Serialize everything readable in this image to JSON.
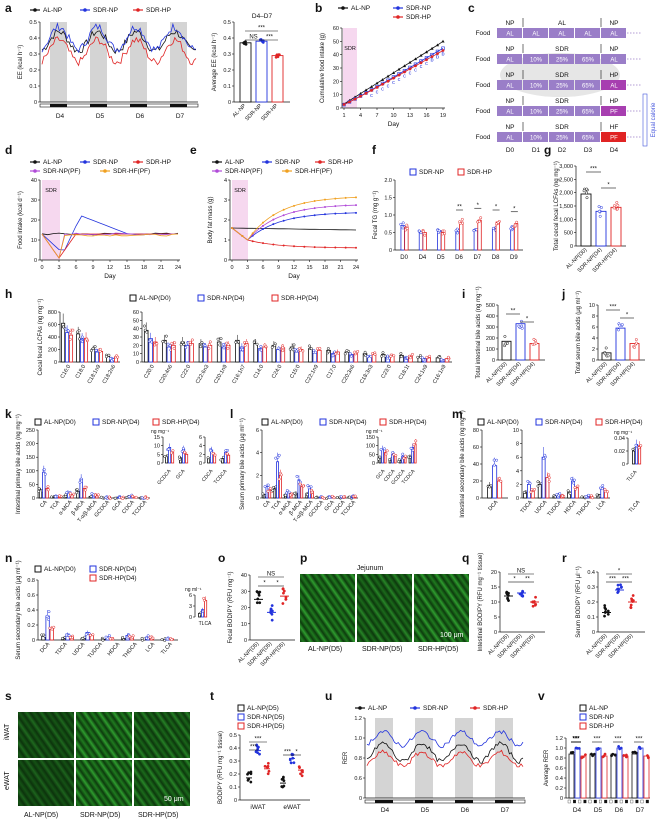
{
  "colors": {
    "al": "#111111",
    "np": "#2233dd",
    "hp": "#e02424",
    "pf_np": "#b04ad8",
    "pf_hf": "#f0a020",
    "sdr": "#f6d8ef",
    "diet": "#9a7ec8",
    "cal": "#4455dd"
  },
  "panels": {
    "a": {
      "label": "a",
      "legend": [
        "AL-NP",
        "SDR-NP",
        "SDR-HP"
      ],
      "ylabel": "EE (kcal h⁻¹)",
      "days": [
        "D4",
        "D5",
        "D6",
        "D7"
      ],
      "yticks": [
        "0",
        "0.1",
        "0.2",
        "0.3",
        "0.4",
        "0.5"
      ],
      "bar": {
        "title": "D4–D7",
        "ylabel": "Average EE (kcal h⁻¹)",
        "yticks": [
          "0",
          "0.1",
          "0.2",
          "0.3",
          "0.4",
          "0.5"
        ],
        "cats": [
          "AL-NP",
          "SDR-NP",
          "SDR-HP"
        ],
        "values": [
          0.37,
          0.38,
          0.29
        ],
        "sig": [
          "NS",
          "***",
          "***"
        ]
      }
    },
    "b": {
      "label": "b",
      "legend": [
        "AL-NP",
        "SDR-NP",
        "SDR-HP"
      ],
      "ylabel": "Cumulative food intake (g)",
      "xlabel": "Day",
      "xticks": [
        "1",
        "4",
        "7",
        "10",
        "13",
        "16",
        "19"
      ],
      "yticks": [
        "0",
        "10",
        "20",
        "30",
        "40",
        "50",
        "60"
      ],
      "sdr": "SDR",
      "chart_data": {
        "type": "line",
        "x": [
          1,
          2,
          3,
          4,
          5,
          6,
          7,
          8,
          9,
          10,
          11,
          12,
          13,
          14,
          15,
          16,
          17,
          18,
          19
        ],
        "series": [
          {
            "name": "AL-NP",
            "values": [
              3,
              5.6,
              8.2,
              10.8,
              13.4,
              16,
              18.6,
              21.2,
              23.8,
              26.4,
              29,
              31.6,
              34.2,
              36.8,
              39.4,
              42,
              44.6,
              47.2,
              50
            ]
          },
          {
            "name": "SDR-NP",
            "values": [
              2.5,
              4.6,
              6.8,
              9,
              11.3,
              13.6,
              16,
              18.4,
              20.8,
              23.2,
              25.6,
              28,
              30.4,
              32.8,
              35.2,
              37.6,
              40,
              42.4,
              44.8
            ]
          },
          {
            "name": "SDR-HP",
            "values": [
              2.6,
              4.6,
              6.7,
              8.8,
              11,
              13.2,
              15.5,
              17.8,
              20.1,
              22.4,
              24.7,
              27,
              29.3,
              31.6,
              33.9,
              36.2,
              38.5,
              40.8,
              43.1
            ]
          }
        ]
      },
      "sig_letters": "c c c c c c c c c c c b b b"
    },
    "c": {
      "label": "c",
      "food": "Food",
      "days": [
        "D0",
        "D1",
        "D2",
        "D3",
        "D4"
      ],
      "equal": "Equal calorie",
      "rows": [
        {
          "top": [
            "NP",
            "AL",
            "NP"
          ],
          "cells": [
            "AL",
            "AL",
            "AL",
            "AL",
            "AL"
          ]
        },
        {
          "top": [
            "NP",
            "SDR",
            "NP"
          ],
          "cells": [
            "AL",
            "10%",
            "25%",
            "65%",
            "AL"
          ]
        },
        {
          "top": [
            "NP",
            "SDR",
            "HP"
          ],
          "cells": [
            "AL",
            "10%",
            "25%",
            "65%",
            "AL"
          ]
        },
        {
          "top": [
            "NP",
            "SDR",
            "HP"
          ],
          "cells": [
            "AL",
            "10%",
            "25%",
            "65%",
            "PF"
          ]
        },
        {
          "top": [
            "NP",
            "SDR",
            "HF"
          ],
          "cells": [
            "AL",
            "10%",
            "25%",
            "65%",
            "PF"
          ]
        }
      ]
    },
    "d": {
      "label": "d",
      "legend": [
        "AL-NP",
        "SDR-NP",
        "SDR-HP",
        "SDR-NP(PF)",
        "SDR-HF(PF)"
      ],
      "ylabel": "Food intake (kcal d⁻¹)",
      "xlabel": "Day",
      "xticks": [
        "0",
        "3",
        "6",
        "9",
        "12",
        "15",
        "18",
        "21",
        "24"
      ],
      "yticks": [
        "0",
        "10",
        "20",
        "30",
        "40"
      ],
      "sdr": "SDR"
    },
    "e": {
      "label": "e",
      "legend": [
        "AL-NP",
        "SDR-NP",
        "SDR-HP",
        "SDR-NP(PF)",
        "SDR-HF(PF)"
      ],
      "ylabel": "Body fat mass (g)",
      "xlabel": "Day",
      "xticks": [
        "0",
        "3",
        "6",
        "9",
        "12",
        "15",
        "18",
        "21",
        "24"
      ],
      "yticks": [
        "0",
        "1",
        "2",
        "3",
        "4"
      ],
      "sdr": "SDR"
    },
    "f": {
      "label": "f",
      "legend": [
        "SDR-NP",
        "SDR-HP"
      ],
      "ylabel": "Fecal TG (mg g⁻¹)",
      "cats": [
        "D0",
        "D4",
        "D5",
        "D6",
        "D7",
        "D8",
        "D9"
      ],
      "yticks": [
        "0",
        "0.5",
        "1.0",
        "1.5",
        "2.0"
      ],
      "np": [
        0.7,
        0.5,
        0.55,
        0.55,
        0.55,
        0.6,
        0.6
      ],
      "hp": [
        0.65,
        0.5,
        0.5,
        0.8,
        0.85,
        0.8,
        0.75
      ],
      "sig": [
        "",
        "",
        "",
        "**",
        "*",
        "*",
        "*"
      ]
    },
    "g": {
      "label": "g",
      "ylabel": "Total cecal fecal LCFAs (ng mg⁻¹)",
      "yticks": [
        "0",
        "500",
        "1,000",
        "1,500",
        "2,000",
        "2,500",
        "3,000"
      ],
      "cats": [
        "AL-NP(D0)",
        "SDR-NP(D4)",
        "SDR-HP(D4)"
      ],
      "values": [
        1950,
        1300,
        1450
      ],
      "sig": [
        "***",
        "*"
      ]
    },
    "h": {
      "label": "h",
      "legend": [
        "AL-NP(D0)",
        "SDR-NP(D4)",
        "SDR-HP(D4)"
      ],
      "ylabel": "Cecal fecal LCFAs (ng mg⁻¹)",
      "left_cats": [
        "C16:0",
        "C18:0",
        "C18:1n9",
        "C18:2n6"
      ],
      "left_yticks": [
        "0",
        "200",
        "400",
        "600",
        "800"
      ],
      "left": [
        [
          620,
          470,
          430
        ],
        [
          450,
          370,
          380
        ],
        [
          210,
          160,
          170
        ],
        [
          90,
          60,
          80
        ]
      ],
      "right_cats": [
        "C20:0",
        "C20:4n6",
        "C22:0",
        "C22:6n3",
        "C20:1n9",
        "C16:1n7",
        "C14:0",
        "C24:0",
        "C15:0",
        "C22:1n9",
        "C17:0",
        "C20:3n6",
        "C18:3n3",
        "C23:0",
        "C18:1t",
        "C24:1n9",
        "C16:1n9"
      ],
      "right_yticks": [
        "0",
        "10",
        "20",
        "30",
        "40",
        "50",
        "60"
      ],
      "right": [
        [
          38,
          28,
          24
        ],
        [
          26,
          18,
          20
        ],
        [
          24,
          20,
          22
        ],
        [
          22,
          18,
          20
        ],
        [
          24,
          18,
          20
        ],
        [
          26,
          18,
          22
        ],
        [
          22,
          16,
          18
        ],
        [
          20,
          15,
          17
        ],
        [
          18,
          12,
          15
        ],
        [
          16,
          12,
          14
        ],
        [
          14,
          10,
          12
        ],
        [
          12,
          9,
          10
        ],
        [
          10,
          7,
          9
        ],
        [
          9,
          6,
          8
        ],
        [
          8,
          6,
          7
        ],
        [
          6,
          4,
          5
        ],
        [
          5,
          3,
          4
        ]
      ]
    },
    "i": {
      "label": "i",
      "ylabel": "Total intestinal bile acids (ng mg⁻¹)",
      "yticks": [
        "0",
        "100",
        "200",
        "300",
        "400",
        "500"
      ],
      "cats": [
        "AL-NP(D0)",
        "SDR-NP(D4)",
        "SDR-HP(D4)"
      ],
      "values": [
        170,
        330,
        150
      ],
      "sig": [
        "**",
        "*"
      ]
    },
    "j": {
      "label": "j",
      "ylabel": "Total serum bile acids (μg ml⁻¹)",
      "yticks": [
        "0",
        "2",
        "4",
        "6",
        "8",
        "10"
      ],
      "cats": [
        "AL-NP(D0)",
        "SDR-NP(D4)",
        "SDR-HP(D4)"
      ],
      "values": [
        1.3,
        5.8,
        3.0
      ],
      "sig": [
        "***",
        "*"
      ]
    },
    "k": {
      "label": "k",
      "legend": [
        "AL-NP(D0)",
        "SDR-NP(D4)",
        "SDR-HP(D4)"
      ],
      "ylabel": "Intestinal primary bile acids (ng mg⁻¹)",
      "cats": [
        "CA",
        "TCA",
        "α-MCA",
        "β-MCA",
        "T-α/β-MCA",
        "GCDCA",
        "GCA",
        "CDCA",
        "TCDCA"
      ],
      "yticks": [
        "0",
        "50",
        "100",
        "150",
        "200",
        "250"
      ],
      "values": [
        [
          30,
          95,
          35
        ],
        [
          3,
          8,
          4
        ],
        [
          8,
          18,
          12
        ],
        [
          25,
          70,
          35
        ],
        [
          6,
          12,
          8
        ],
        [
          0.5,
          1,
          0.6
        ],
        [
          1,
          2,
          1.2
        ],
        [
          3,
          6,
          4
        ],
        [
          1,
          2,
          1.5
        ]
      ],
      "inset_cats": [
        "GCDCA",
        "GCA"
      ],
      "inset_ylabel": "ng mg⁻¹",
      "inset2_cats": [
        "CDCA",
        "TCDCA"
      ]
    },
    "l": {
      "label": "l",
      "legend": [
        "AL-NP(D0)",
        "SDR-NP(D4)",
        "SDR-HP(D4)"
      ],
      "ylabel": "Serum primary bile acids (μg ml⁻¹)",
      "cats": [
        "CA",
        "TCA",
        "α-MCA",
        "β-MCA",
        "T-α/β-MCA",
        "GCDCA",
        "GCA",
        "CDCA",
        "TCDCA"
      ],
      "yticks": [
        "0",
        "2",
        "4",
        "6"
      ],
      "values": [
        [
          0.3,
          1.0,
          0.7
        ],
        [
          0.8,
          3.2,
          2.0
        ],
        [
          0.2,
          0.5,
          0.4
        ],
        [
          0.4,
          1.6,
          1.0
        ],
        [
          0.3,
          0.9,
          0.6
        ],
        [
          0.02,
          0.05,
          0.04
        ],
        [
          0.05,
          0.1,
          0.08
        ],
        [
          0.03,
          0.06,
          0.05
        ],
        [
          0.05,
          0.15,
          0.12
        ]
      ],
      "inset_cats": [
        "GCA",
        "CDCA",
        "GCDCA",
        "TCDCA"
      ],
      "inset_ylabel": "ng ml⁻¹"
    },
    "m": {
      "label": "m",
      "legend": [
        "AL-NP(D0)",
        "SDR-NP(D4)",
        "SDR-HP(D4)"
      ],
      "ylabel": "Intestinal secondary bile acids (ng mg⁻¹)",
      "cats": [
        "DCA",
        "TDCA",
        "UDCA",
        "TUDCA",
        "HDCA",
        "THDCA",
        "LCA",
        "TLCA"
      ],
      "left_yticks": [
        "0",
        "20",
        "40",
        "60",
        "80"
      ],
      "right_yticks": [
        "0",
        "2",
        "4",
        "6",
        "8",
        "10"
      ],
      "values": [
        [
          15,
          38,
          20
        ],
        [
          0.8,
          2.0,
          1.0
        ],
        [
          2,
          6,
          3
        ],
        [
          0.2,
          0.6,
          0.4
        ],
        [
          0.8,
          2.5,
          1.5
        ],
        [
          0.1,
          0.3,
          0.2
        ],
        [
          0.5,
          1.5,
          1.0
        ],
        [
          0.02,
          0.03,
          0.03
        ]
      ],
      "inset_cats": [
        "TLCA"
      ],
      "inset_ylabel": "ng mg⁻¹"
    },
    "n": {
      "label": "n",
      "legend": [
        "AL-NP(D0)",
        "SDR-NP(D4)",
        "SDR-HP(D4)"
      ],
      "ylabel": "Serum secondary bile acids (μg ml⁻¹)",
      "cats": [
        "DCA",
        "TDCA",
        "UDCA",
        "TUDCA",
        "HDCA",
        "THDCA",
        "LCA",
        "TLCA"
      ],
      "yticks": [
        "0",
        "0.2",
        "0.4",
        "0.6",
        "0.8"
      ],
      "values": [
        [
          0.05,
          0.32,
          0.15
        ],
        [
          0.02,
          0.08,
          0.05
        ],
        [
          0.03,
          0.1,
          0.06
        ],
        [
          0.01,
          0.04,
          0.03
        ],
        [
          0.02,
          0.06,
          0.04
        ],
        [
          0.01,
          0.04,
          0.03
        ],
        [
          0.005,
          0.02,
          0.015
        ],
        [
          0.002,
          0.004,
          0.006
        ]
      ],
      "inset_cats": [
        "TLCA"
      ],
      "inset_ylabel": "ng ml⁻¹"
    },
    "o": {
      "label": "o",
      "ylabel": "Fecal BODIPY (RFU mg⁻¹)",
      "yticks": [
        "0",
        "10",
        "20",
        "30",
        "40"
      ],
      "cats": [
        "AL-NP(D5)",
        "SDR-NP(D5)",
        "SDR-HP(D5)"
      ],
      "values": [
        25,
        17,
        27
      ],
      "sig": [
        "NS",
        "*",
        "*"
      ]
    },
    "p": {
      "label": "p",
      "title": "Jejunum",
      "scale": "100 μm",
      "cats": [
        "AL-NP(D5)",
        "SDR-NP(D5)",
        "SDR-HP(D5)"
      ]
    },
    "q": {
      "label": "q",
      "ylabel": "Intestinal BODIPY (RFU mg⁻¹ tissue)",
      "yticks": [
        "0",
        "5",
        "10",
        "15",
        "20"
      ],
      "cats": [
        "AL-NP(D5)",
        "SDR-NP(D5)",
        "SDR-HP(D5)"
      ],
      "values": [
        12,
        13,
        10
      ],
      "sig": [
        "NS",
        "*",
        "**"
      ]
    },
    "r": {
      "label": "r",
      "ylabel": "Serum BODIPY (RFU μl⁻¹)",
      "yticks": [
        "0",
        "0.1",
        "0.2",
        "0.3",
        "0.4"
      ],
      "cats": [
        "AL-NP(D5)",
        "SDR-NP(D5)",
        "SDR-HP(D5)"
      ],
      "values": [
        0.13,
        0.28,
        0.2
      ],
      "sig": [
        "*",
        "***",
        "***"
      ]
    },
    "s": {
      "label": "s",
      "rows": [
        "iWAT",
        "eWAT"
      ],
      "scale": "50 μm",
      "cats": [
        "AL-NP(D5)",
        "SDR-NP(D5)",
        "SDR-HP(D5)"
      ]
    },
    "t": {
      "label": "t",
      "legend": [
        "AL-NP(D5)",
        "SDR-NP(D5)",
        "SDR-HP(D5)"
      ],
      "ylabel": "BODIPY (RFU mg⁻¹ tissue)",
      "yticks": [
        "0",
        "0.1",
        "0.2",
        "0.3",
        "0.4",
        "0.5"
      ],
      "cats": [
        "iWAT",
        "eWAT"
      ],
      "values": [
        [
          0.17,
          0.38,
          0.24
        ],
        [
          0.13,
          0.32,
          0.23
        ]
      ],
      "sig": [
        "***",
        "***",
        "***",
        "*"
      ]
    },
    "u": {
      "label": "u",
      "legend": [
        "AL-NP",
        "SDR-NP",
        "SDR-HP"
      ],
      "ylabel": "RER",
      "days": [
        "D4",
        "D5",
        "D6",
        "D7"
      ],
      "yticks": [
        "0",
        "0.6",
        "0.8",
        "1.0",
        "1.2"
      ]
    },
    "v": {
      "label": "v",
      "legend": [
        "AL-NP",
        "SDR-NP",
        "SDR-HP"
      ],
      "ylabel": "Average RER",
      "yticks": [
        "0",
        "0.2",
        "0.4",
        "0.6",
        "0.8",
        "1.0",
        "1.2"
      ],
      "cats": [
        "D4",
        "D5",
        "D6",
        "D7"
      ],
      "values": [
        [
          0.88,
          1.0,
          0.84
        ],
        [
          0.88,
          1.0,
          0.84
        ],
        [
          0.88,
          1.0,
          0.84
        ],
        [
          0.88,
          1.0,
          0.84
        ]
      ]
    }
  }
}
